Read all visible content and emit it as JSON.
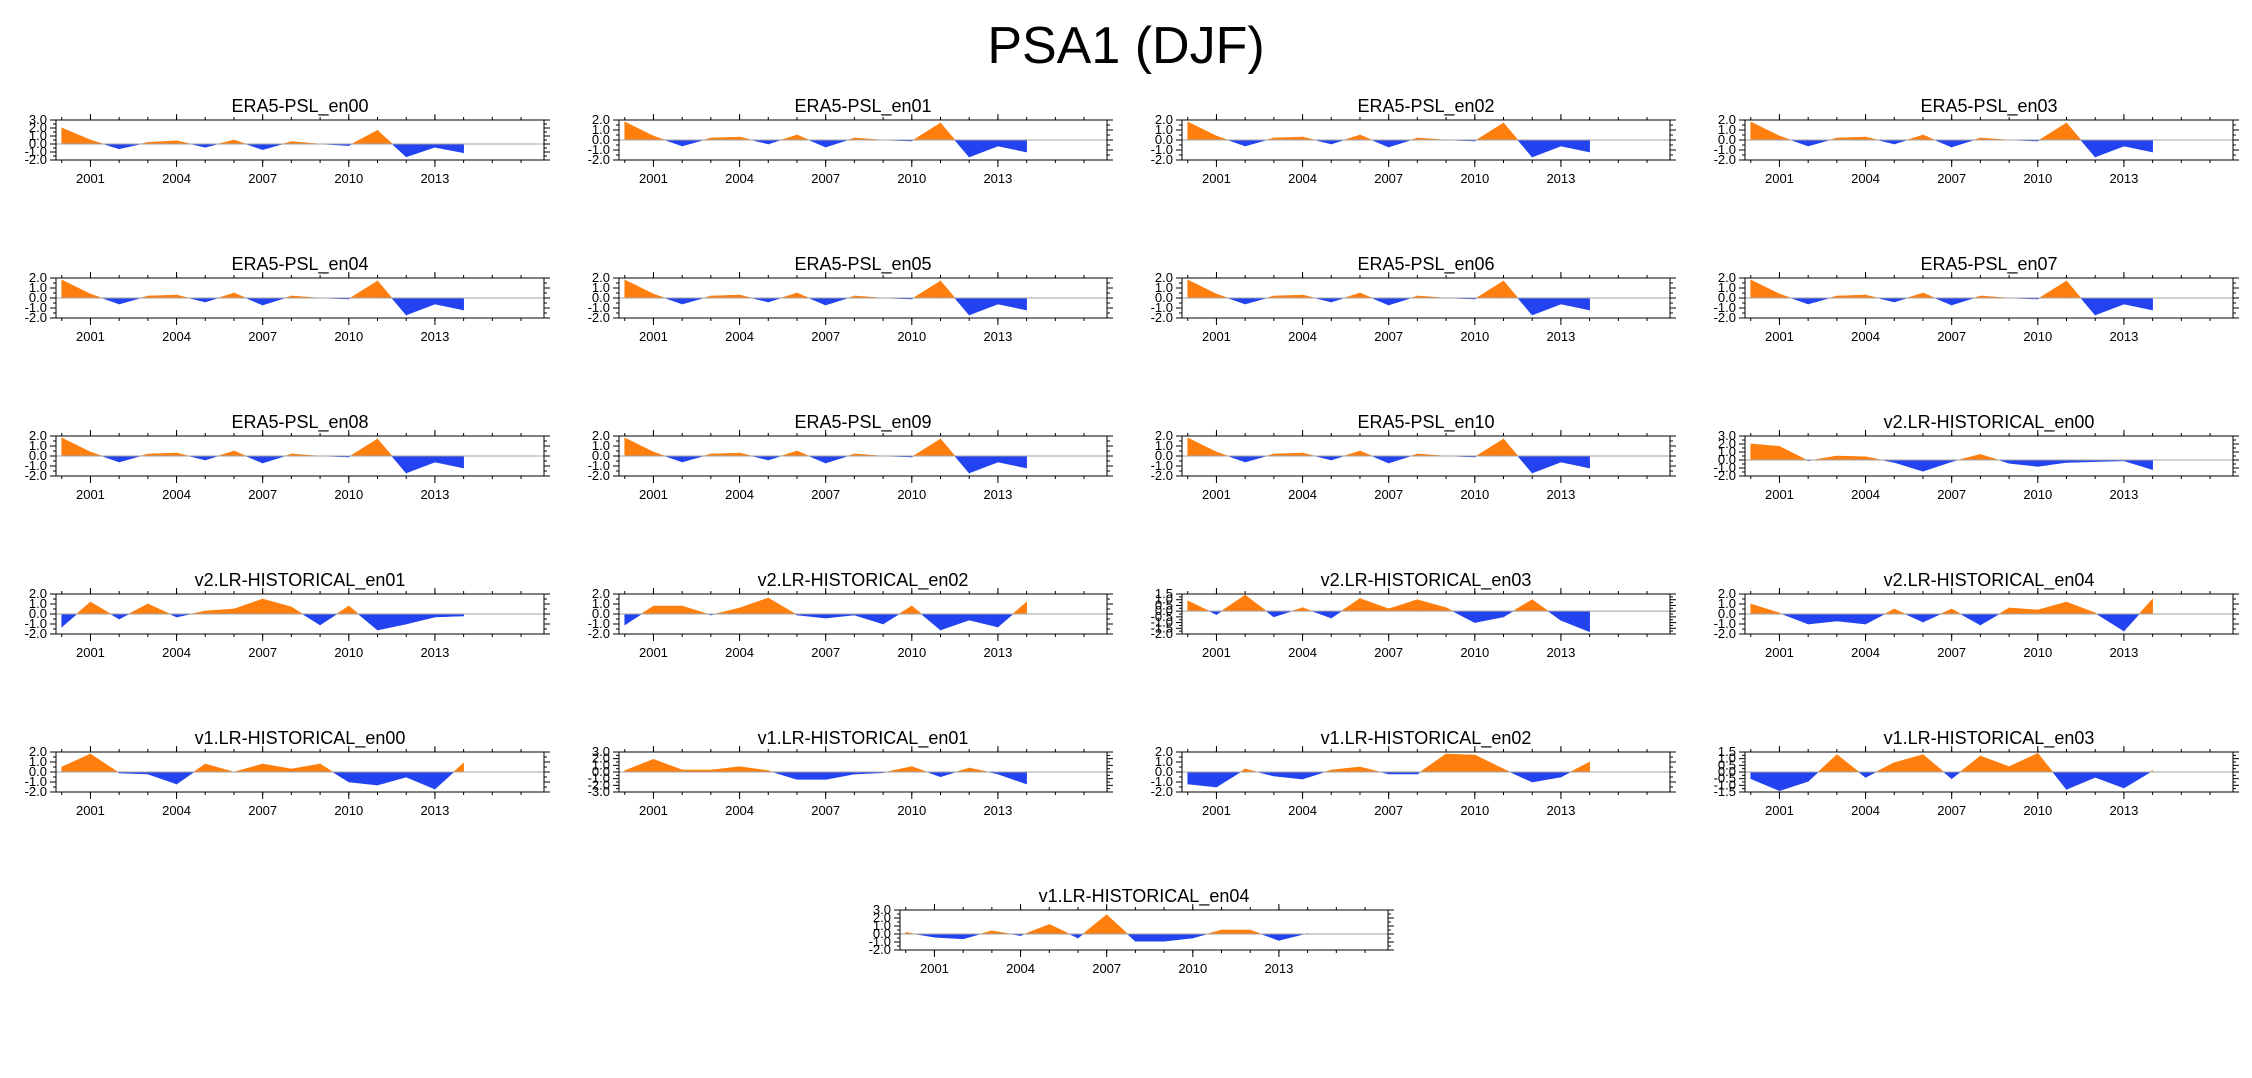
{
  "title": "PSA1 (DJF)",
  "colors": {
    "positive": "#ff7f0e",
    "negative": "#2443f0",
    "axis": "#000000",
    "zero_line": "#a0a0a0"
  },
  "chart_data": [
    {
      "type": "area",
      "title": "ERA5-PSL_en00",
      "ylim": [
        -2,
        3
      ],
      "yticks": [
        "3.0",
        "2.0",
        "1.0",
        "0.0",
        "-1.0",
        "-2.0"
      ],
      "xticks": [
        "2001",
        "2004",
        "2007",
        "2010",
        "2013"
      ],
      "x": [
        2000,
        2001,
        2002,
        2003,
        2004,
        2005,
        2006,
        2007,
        2008,
        2009,
        2010,
        2011,
        2012,
        2013,
        2014
      ],
      "values": [
        2.0,
        0.5,
        -0.6,
        0.2,
        0.4,
        -0.4,
        0.5,
        -0.7,
        0.3,
        0.0,
        -0.2,
        1.7,
        -1.6,
        -0.4,
        -1.1
      ]
    },
    {
      "type": "area",
      "title": "ERA5-PSL_en01",
      "ylim": [
        -2,
        2
      ],
      "yticks": [
        "2.0",
        "1.0",
        "0.0",
        "-1.0",
        "-2.0"
      ],
      "xticks": [
        "2001",
        "2004",
        "2007",
        "2010",
        "2013"
      ],
      "x": [
        2000,
        2001,
        2002,
        2003,
        2004,
        2005,
        2006,
        2007,
        2008,
        2009,
        2010,
        2011,
        2012,
        2013,
        2014
      ],
      "values": [
        1.8,
        0.4,
        -0.6,
        0.2,
        0.3,
        -0.4,
        0.5,
        -0.7,
        0.2,
        0.0,
        -0.1,
        1.7,
        -1.7,
        -0.6,
        -1.2
      ]
    },
    {
      "type": "area",
      "title": "ERA5-PSL_en02",
      "ylim": [
        -2,
        2
      ],
      "yticks": [
        "2.0",
        "1.0",
        "0.0",
        "-1.0",
        "-2.0"
      ],
      "xticks": [
        "2001",
        "2004",
        "2007",
        "2010",
        "2013"
      ],
      "x": [
        2000,
        2001,
        2002,
        2003,
        2004,
        2005,
        2006,
        2007,
        2008,
        2009,
        2010,
        2011,
        2012,
        2013,
        2014
      ],
      "values": [
        1.8,
        0.4,
        -0.6,
        0.2,
        0.3,
        -0.4,
        0.5,
        -0.7,
        0.2,
        0.0,
        -0.1,
        1.7,
        -1.7,
        -0.6,
        -1.2
      ]
    },
    {
      "type": "area",
      "title": "ERA5-PSL_en03",
      "ylim": [
        -2,
        2
      ],
      "yticks": [
        "2.0",
        "1.0",
        "0.0",
        "-1.0",
        "-2.0"
      ],
      "xticks": [
        "2001",
        "2004",
        "2007",
        "2010",
        "2013"
      ],
      "x": [
        2000,
        2001,
        2002,
        2003,
        2004,
        2005,
        2006,
        2007,
        2008,
        2009,
        2010,
        2011,
        2012,
        2013,
        2014
      ],
      "values": [
        1.8,
        0.4,
        -0.6,
        0.2,
        0.3,
        -0.4,
        0.5,
        -0.7,
        0.2,
        0.0,
        -0.1,
        1.7,
        -1.7,
        -0.6,
        -1.2
      ]
    },
    {
      "type": "area",
      "title": "ERA5-PSL_en04",
      "ylim": [
        -2,
        2
      ],
      "yticks": [
        "2.0",
        "1.0",
        "0.0",
        "-1.0",
        "-2.0"
      ],
      "xticks": [
        "2001",
        "2004",
        "2007",
        "2010",
        "2013"
      ],
      "x": [
        2000,
        2001,
        2002,
        2003,
        2004,
        2005,
        2006,
        2007,
        2008,
        2009,
        2010,
        2011,
        2012,
        2013,
        2014
      ],
      "values": [
        1.8,
        0.4,
        -0.6,
        0.2,
        0.3,
        -0.4,
        0.5,
        -0.7,
        0.2,
        0.0,
        -0.1,
        1.7,
        -1.7,
        -0.6,
        -1.2
      ]
    },
    {
      "type": "area",
      "title": "ERA5-PSL_en05",
      "ylim": [
        -2,
        2
      ],
      "yticks": [
        "2.0",
        "1.0",
        "0.0",
        "-1.0",
        "-2.0"
      ],
      "xticks": [
        "2001",
        "2004",
        "2007",
        "2010",
        "2013"
      ],
      "x": [
        2000,
        2001,
        2002,
        2003,
        2004,
        2005,
        2006,
        2007,
        2008,
        2009,
        2010,
        2011,
        2012,
        2013,
        2014
      ],
      "values": [
        1.8,
        0.4,
        -0.6,
        0.2,
        0.3,
        -0.4,
        0.5,
        -0.7,
        0.2,
        0.0,
        -0.1,
        1.7,
        -1.7,
        -0.6,
        -1.2
      ]
    },
    {
      "type": "area",
      "title": "ERA5-PSL_en06",
      "ylim": [
        -2,
        2
      ],
      "yticks": [
        "2.0",
        "1.0",
        "0.0",
        "-1.0",
        "-2.0"
      ],
      "xticks": [
        "2001",
        "2004",
        "2007",
        "2010",
        "2013"
      ],
      "x": [
        2000,
        2001,
        2002,
        2003,
        2004,
        2005,
        2006,
        2007,
        2008,
        2009,
        2010,
        2011,
        2012,
        2013,
        2014
      ],
      "values": [
        1.8,
        0.4,
        -0.6,
        0.2,
        0.3,
        -0.4,
        0.5,
        -0.7,
        0.2,
        0.0,
        -0.1,
        1.7,
        -1.7,
        -0.6,
        -1.2
      ]
    },
    {
      "type": "area",
      "title": "ERA5-PSL_en07",
      "ylim": [
        -2,
        2
      ],
      "yticks": [
        "2.0",
        "1.0",
        "0.0",
        "-1.0",
        "-2.0"
      ],
      "xticks": [
        "2001",
        "2004",
        "2007",
        "2010",
        "2013"
      ],
      "x": [
        2000,
        2001,
        2002,
        2003,
        2004,
        2005,
        2006,
        2007,
        2008,
        2009,
        2010,
        2011,
        2012,
        2013,
        2014
      ],
      "values": [
        1.8,
        0.4,
        -0.6,
        0.2,
        0.3,
        -0.4,
        0.5,
        -0.7,
        0.2,
        0.0,
        -0.1,
        1.7,
        -1.7,
        -0.6,
        -1.2
      ]
    },
    {
      "type": "area",
      "title": "ERA5-PSL_en08",
      "ylim": [
        -2,
        2
      ],
      "yticks": [
        "2.0",
        "1.0",
        "0.0",
        "-1.0",
        "-2.0"
      ],
      "xticks": [
        "2001",
        "2004",
        "2007",
        "2010",
        "2013"
      ],
      "x": [
        2000,
        2001,
        2002,
        2003,
        2004,
        2005,
        2006,
        2007,
        2008,
        2009,
        2010,
        2011,
        2012,
        2013,
        2014
      ],
      "values": [
        1.8,
        0.4,
        -0.6,
        0.2,
        0.3,
        -0.4,
        0.5,
        -0.7,
        0.2,
        0.0,
        -0.1,
        1.7,
        -1.7,
        -0.6,
        -1.2
      ]
    },
    {
      "type": "area",
      "title": "ERA5-PSL_en09",
      "ylim": [
        -2,
        2
      ],
      "yticks": [
        "2.0",
        "1.0",
        "0.0",
        "-1.0",
        "-2.0"
      ],
      "xticks": [
        "2001",
        "2004",
        "2007",
        "2010",
        "2013"
      ],
      "x": [
        2000,
        2001,
        2002,
        2003,
        2004,
        2005,
        2006,
        2007,
        2008,
        2009,
        2010,
        2011,
        2012,
        2013,
        2014
      ],
      "values": [
        1.8,
        0.4,
        -0.6,
        0.2,
        0.3,
        -0.4,
        0.5,
        -0.7,
        0.2,
        0.0,
        -0.1,
        1.7,
        -1.7,
        -0.6,
        -1.2
      ]
    },
    {
      "type": "area",
      "title": "ERA5-PSL_en10",
      "ylim": [
        -2,
        2
      ],
      "yticks": [
        "2.0",
        "1.0",
        "0.0",
        "-1.0",
        "-2.0"
      ],
      "xticks": [
        "2001",
        "2004",
        "2007",
        "2010",
        "2013"
      ],
      "x": [
        2000,
        2001,
        2002,
        2003,
        2004,
        2005,
        2006,
        2007,
        2008,
        2009,
        2010,
        2011,
        2012,
        2013,
        2014
      ],
      "values": [
        1.8,
        0.4,
        -0.6,
        0.2,
        0.3,
        -0.4,
        0.5,
        -0.7,
        0.2,
        0.0,
        -0.1,
        1.7,
        -1.7,
        -0.6,
        -1.2
      ]
    },
    {
      "type": "area",
      "title": "v2.LR-HISTORICAL_en00",
      "ylim": [
        -2,
        3
      ],
      "yticks": [
        "3.0",
        "2.0",
        "1.0",
        "0.0",
        "-1.0",
        "-2.0"
      ],
      "xticks": [
        "2001",
        "2004",
        "2007",
        "2010",
        "2013"
      ],
      "x": [
        2000,
        2001,
        2002,
        2003,
        2004,
        2005,
        2006,
        2007,
        2008,
        2009,
        2010,
        2011,
        2012,
        2013,
        2014
      ],
      "values": [
        2.0,
        1.7,
        -0.1,
        0.5,
        0.4,
        -0.3,
        -1.4,
        -0.2,
        0.7,
        -0.4,
        -0.8,
        -0.3,
        -0.2,
        -0.1,
        -1.2
      ]
    },
    {
      "type": "area",
      "title": "v2.LR-HISTORICAL_en01",
      "ylim": [
        -2,
        2
      ],
      "yticks": [
        "2.0",
        "1.0",
        "0.0",
        "-1.0",
        "-2.0"
      ],
      "xticks": [
        "2001",
        "2004",
        "2007",
        "2010",
        "2013"
      ],
      "x": [
        2000,
        2001,
        2002,
        2003,
        2004,
        2005,
        2006,
        2007,
        2008,
        2009,
        2010,
        2011,
        2012,
        2013,
        2014
      ],
      "values": [
        -1.3,
        1.2,
        -0.5,
        1.0,
        -0.3,
        0.3,
        0.5,
        1.5,
        0.7,
        -1.1,
        0.8,
        -1.6,
        -1.0,
        -0.3,
        -0.2
      ]
    },
    {
      "type": "area",
      "title": "v2.LR-HISTORICAL_en02",
      "ylim": [
        -2,
        2
      ],
      "yticks": [
        "2.0",
        "1.0",
        "0.0",
        "-1.0",
        "-2.0"
      ],
      "xticks": [
        "2001",
        "2004",
        "2007",
        "2010",
        "2013"
      ],
      "x": [
        2000,
        2001,
        2002,
        2003,
        2004,
        2005,
        2006,
        2007,
        2008,
        2009,
        2010,
        2011,
        2012,
        2013,
        2014
      ],
      "values": [
        -1.1,
        0.8,
        0.8,
        -0.1,
        0.6,
        1.6,
        -0.1,
        -0.4,
        -0.1,
        -1.0,
        0.8,
        -1.6,
        -0.6,
        -1.3,
        1.2
      ]
    },
    {
      "type": "area",
      "title": "v2.LR-HISTORICAL_en03",
      "ylim": [
        -2,
        1.5
      ],
      "yticks": [
        "1.5",
        "1.0",
        "0.5",
        "0.0",
        "-0.5",
        "-1.0",
        "-1.5",
        "-2.0"
      ],
      "xticks": [
        "2001",
        "2004",
        "2007",
        "2010",
        "2013"
      ],
      "x": [
        2000,
        2001,
        2002,
        2003,
        2004,
        2005,
        2006,
        2007,
        2008,
        2009,
        2010,
        2011,
        2012,
        2013,
        2014
      ],
      "values": [
        0.9,
        -0.3,
        1.4,
        -0.5,
        0.3,
        -0.6,
        1.1,
        0.2,
        1.0,
        0.3,
        -1.0,
        -0.5,
        1.0,
        -0.8,
        -1.8
      ]
    },
    {
      "type": "area",
      "title": "v2.LR-HISTORICAL_en04",
      "ylim": [
        -2,
        2
      ],
      "yticks": [
        "2.0",
        "1.0",
        "0.0",
        "-1.0",
        "-2.0"
      ],
      "xticks": [
        "2001",
        "2004",
        "2007",
        "2010",
        "2013"
      ],
      "x": [
        2000,
        2001,
        2002,
        2003,
        2004,
        2005,
        2006,
        2007,
        2008,
        2009,
        2010,
        2011,
        2012,
        2013,
        2014
      ],
      "values": [
        1.0,
        0.1,
        -1.0,
        -0.7,
        -1.0,
        0.5,
        -0.8,
        0.5,
        -1.1,
        0.6,
        0.4,
        1.2,
        0.1,
        -1.7,
        1.5
      ]
    },
    {
      "type": "area",
      "title": "v1.LR-HISTORICAL_en00",
      "ylim": [
        -2,
        2
      ],
      "yticks": [
        "2.0",
        "1.0",
        "0.0",
        "-1.0",
        "-2.0"
      ],
      "xticks": [
        "2001",
        "2004",
        "2007",
        "2010",
        "2013"
      ],
      "x": [
        2000,
        2001,
        2002,
        2003,
        2004,
        2005,
        2006,
        2007,
        2008,
        2009,
        2010,
        2011,
        2012,
        2013,
        2014
      ],
      "values": [
        0.5,
        1.8,
        -0.1,
        -0.2,
        -1.2,
        0.8,
        0.0,
        0.8,
        0.3,
        0.8,
        -1.0,
        -1.3,
        -0.5,
        -1.7,
        0.9
      ]
    },
    {
      "type": "area",
      "title": "v1.LR-HISTORICAL_en01",
      "ylim": [
        -3,
        3
      ],
      "yticks": [
        "3.0",
        "2.0",
        "1.0",
        "0.0",
        "-1.0",
        "-2.0",
        "-3.0"
      ],
      "xticks": [
        "2001",
        "2004",
        "2007",
        "2010",
        "2013"
      ],
      "x": [
        2000,
        2001,
        2002,
        2003,
        2004,
        2005,
        2006,
        2007,
        2008,
        2009,
        2010,
        2011,
        2012,
        2013,
        2014
      ],
      "values": [
        0.2,
        1.9,
        0.3,
        0.3,
        0.8,
        0.2,
        -1.1,
        -1.1,
        -0.3,
        -0.1,
        0.8,
        -0.7,
        0.6,
        -0.3,
        -1.8
      ]
    },
    {
      "type": "area",
      "title": "v1.LR-HISTORICAL_en02",
      "ylim": [
        -2,
        2
      ],
      "yticks": [
        "2.0",
        "1.0",
        "0.0",
        "-1.0",
        "-2.0"
      ],
      "xticks": [
        "2001",
        "2004",
        "2007",
        "2010",
        "2013"
      ],
      "x": [
        2000,
        2001,
        2002,
        2003,
        2004,
        2005,
        2006,
        2007,
        2008,
        2009,
        2010,
        2011,
        2012,
        2013,
        2014
      ],
      "values": [
        -1.2,
        -1.5,
        0.3,
        -0.4,
        -0.7,
        0.2,
        0.5,
        -0.2,
        -0.2,
        1.8,
        1.7,
        0.3,
        -1.0,
        -0.5,
        1.0
      ]
    },
    {
      "type": "area",
      "title": "v1.LR-HISTORICAL_en03",
      "ylim": [
        -1.5,
        1.5
      ],
      "yticks": [
        "1.5",
        "1.0",
        "0.5",
        "0.0",
        "-0.5",
        "-1.0",
        "-1.5"
      ],
      "xticks": [
        "2001",
        "2004",
        "2007",
        "2010",
        "2013"
      ],
      "x": [
        2000,
        2001,
        2002,
        2003,
        2004,
        2005,
        2006,
        2007,
        2008,
        2009,
        2010,
        2011,
        2012,
        2013,
        2014
      ],
      "values": [
        -0.5,
        -1.4,
        -0.7,
        1.3,
        -0.4,
        0.7,
        1.3,
        -0.5,
        1.2,
        0.4,
        1.4,
        -1.3,
        -0.4,
        -1.2,
        0.1
      ]
    },
    {
      "type": "area",
      "title": "v1.LR-HISTORICAL_en04",
      "ylim": [
        -2,
        3
      ],
      "yticks": [
        "3.0",
        "2.0",
        "1.0",
        "0.0",
        "-1.0",
        "-2.0"
      ],
      "xticks": [
        "2001",
        "2004",
        "2007",
        "2010",
        "2013"
      ],
      "x": [
        2000,
        2001,
        2002,
        2003,
        2004,
        2005,
        2006,
        2007,
        2008,
        2009,
        2010,
        2011,
        2012,
        2013,
        2014
      ],
      "values": [
        0.2,
        -0.4,
        -0.6,
        0.4,
        -0.2,
        1.2,
        -0.5,
        2.4,
        -0.9,
        -0.9,
        -0.5,
        0.5,
        0.5,
        -0.8,
        0.1
      ]
    }
  ]
}
